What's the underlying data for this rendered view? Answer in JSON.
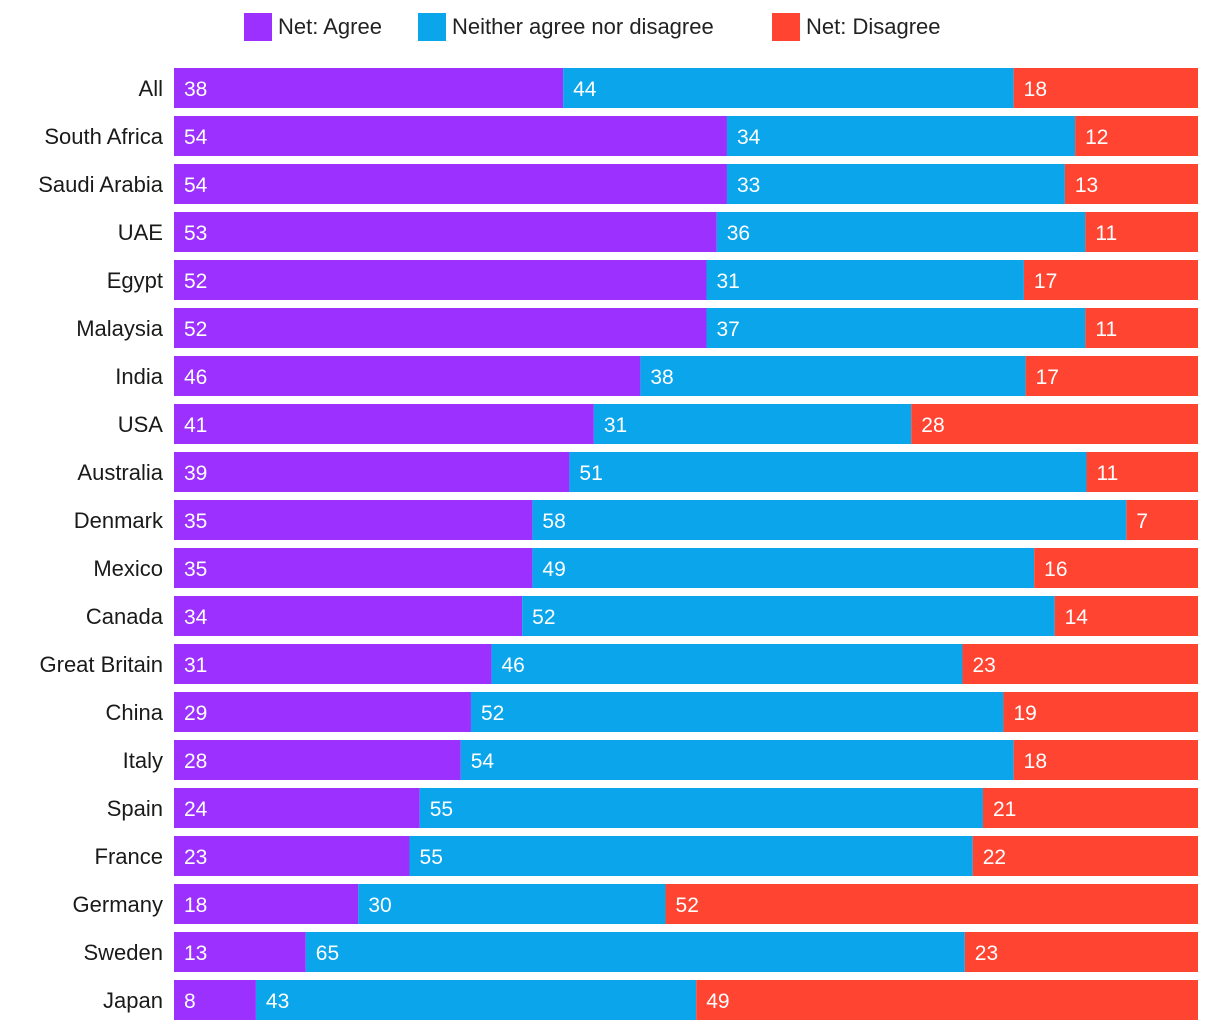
{
  "chart_data": {
    "type": "bar",
    "orientation": "horizontal",
    "stacked": true,
    "title": "",
    "xlabel": "",
    "ylabel": "",
    "legend_position": "top-center",
    "grid": false,
    "categories": [
      "All",
      "South Africa",
      "Saudi Arabia",
      "UAE",
      "Egypt",
      "Malaysia",
      "India",
      "USA",
      "Australia",
      "Denmark",
      "Mexico",
      "Canada",
      "Great Britain",
      "China",
      "Italy",
      "Spain",
      "France",
      "Germany",
      "Sweden",
      "Japan"
    ],
    "series": [
      {
        "name": "Net: Agree",
        "color": "#9b30ff",
        "values": [
          38,
          54,
          54,
          53,
          52,
          52,
          46,
          41,
          39,
          35,
          35,
          34,
          31,
          29,
          28,
          24,
          23,
          18,
          13,
          8
        ]
      },
      {
        "name": "Neither agree nor disagree",
        "color": "#0aa5eb",
        "values": [
          44,
          34,
          33,
          36,
          31,
          37,
          38,
          31,
          51,
          58,
          49,
          52,
          46,
          52,
          54,
          55,
          55,
          30,
          65,
          43
        ]
      },
      {
        "name": "Net: Disagree",
        "color": "#ff4431",
        "values": [
          18,
          12,
          13,
          11,
          17,
          11,
          17,
          28,
          11,
          7,
          16,
          14,
          23,
          19,
          18,
          21,
          22,
          52,
          23,
          49
        ]
      }
    ]
  }
}
